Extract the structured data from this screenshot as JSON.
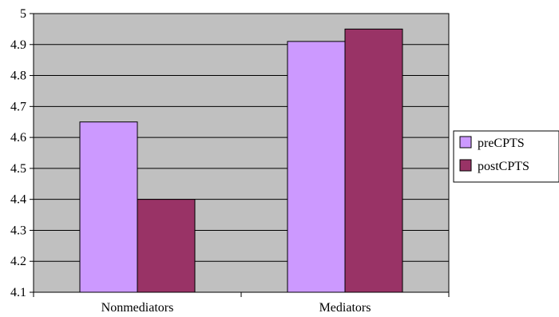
{
  "chart_data": {
    "type": "bar",
    "title": "",
    "xlabel": "",
    "ylabel": "",
    "categories": [
      "Nonmediators",
      "Mediators"
    ],
    "series": [
      {
        "name": "preCPTS",
        "values": [
          4.65,
          4.91
        ],
        "color": "#cc99ff"
      },
      {
        "name": "postCPTS",
        "values": [
          4.4,
          4.95
        ],
        "color": "#993366"
      }
    ],
    "ylim": [
      4.1,
      5.0
    ],
    "yticks": [
      4.1,
      4.2,
      4.3,
      4.4,
      4.5,
      4.6,
      4.7,
      4.8,
      4.9,
      5
    ],
    "ytick_labels": [
      "4.1",
      "4.2",
      "4.3",
      "4.4",
      "4.5",
      "4.6",
      "4.7",
      "4.8",
      "4.9",
      "5"
    ],
    "grid": true,
    "plot_background": "#c0c0c0",
    "legend": {
      "position": "right"
    }
  }
}
